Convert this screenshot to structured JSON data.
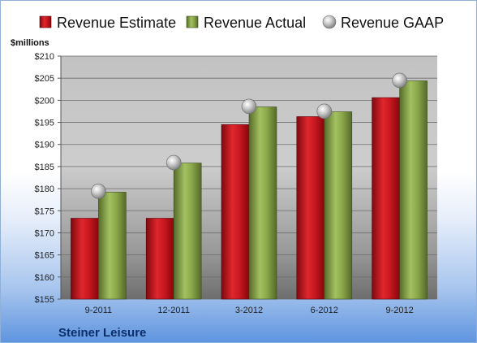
{
  "chart_data": {
    "type": "bar",
    "title": "",
    "caption": "Steiner Leisure",
    "ylabel": "$millions",
    "xlabel": "",
    "categories": [
      "9-2011",
      "12-2011",
      "3-2012",
      "6-2012",
      "9-2012"
    ],
    "ylim": [
      155,
      210
    ],
    "yticks": [
      155,
      160,
      165,
      170,
      175,
      180,
      185,
      190,
      195,
      200,
      205,
      210
    ],
    "ytick_labels": [
      "$155",
      "$160",
      "$165",
      "$170",
      "$175",
      "$180",
      "$185",
      "$190",
      "$195",
      "$200",
      "$205",
      "$210"
    ],
    "grid": true,
    "legend_position": "top",
    "series": [
      {
        "name": "Revenue Estimate",
        "kind": "bar",
        "color": "#c8141c",
        "values": [
          173.3,
          173.3,
          194.5,
          196.3,
          200.6
        ]
      },
      {
        "name": "Revenue Actual",
        "kind": "bar",
        "color": "#8aa84a",
        "values": [
          179.2,
          185.8,
          198.5,
          197.4,
          204.4
        ]
      },
      {
        "name": "Revenue GAAP",
        "kind": "marker",
        "color": "#b4b4b4",
        "values": [
          179.4,
          185.9,
          198.6,
          197.5,
          204.5
        ]
      }
    ]
  }
}
